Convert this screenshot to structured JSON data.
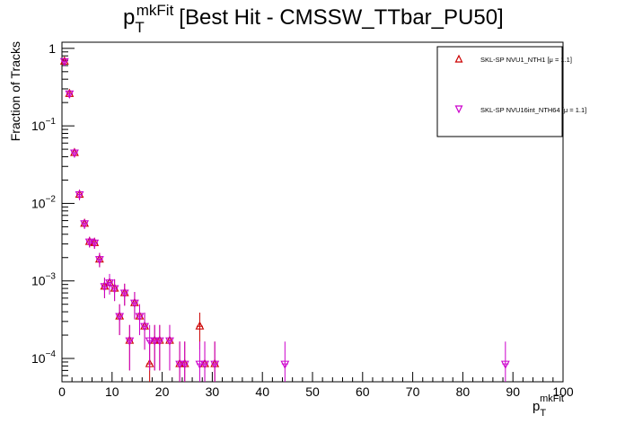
{
  "title": {
    "main": "p",
    "sub": "T",
    "sup": "mkFit",
    "rest": "[Best Hit - CMSSW_TTbar_PU50]"
  },
  "axes": {
    "ylabel": "Fraction of Tracks",
    "xlabel_main": "p",
    "xlabel_sub": "T",
    "xlabel_sup": "mkFit"
  },
  "legend": {
    "placement": "top-right",
    "entries": [
      {
        "label": "SKL-SP NVU1_NTH1 [μ =  1.1]",
        "marker": "triangle-up",
        "color": "#cc0000"
      },
      {
        "label": "SKL-SP NVU16int_NTH64 [μ =  1.1]",
        "marker": "triangle-down",
        "color": "#cc00cc"
      }
    ]
  },
  "chart_data": {
    "type": "scatter",
    "xlim": [
      0,
      100
    ],
    "ylim": [
      5e-05,
      1.2
    ],
    "yscale": "log",
    "xticks": [
      0,
      10,
      20,
      30,
      40,
      50,
      60,
      70,
      80,
      90,
      100
    ],
    "yticks": [
      {
        "value": 1,
        "base": "1",
        "exp": ""
      },
      {
        "value": 0.1,
        "base": "10",
        "exp": "−1"
      },
      {
        "value": 0.01,
        "base": "10",
        "exp": "−2"
      },
      {
        "value": 0.001,
        "base": "10",
        "exp": "−3"
      },
      {
        "value": 0.0001,
        "base": "10",
        "exp": "−4"
      }
    ],
    "grid": false,
    "series": [
      {
        "name": "SKL-SP NVU1_NTH1 [μ =  1.1]",
        "marker": "triangle-up",
        "color": "#cc0000",
        "points": [
          [
            0.5,
            0.68,
            0.05
          ],
          [
            1.5,
            0.26,
            0.03
          ],
          [
            2.5,
            0.045,
            0.006
          ],
          [
            3.5,
            0.013,
            0.002
          ],
          [
            4.5,
            0.0055,
            0.0008
          ],
          [
            5.5,
            0.0032,
            0.0005
          ],
          [
            6.5,
            0.0031,
            0.0005
          ],
          [
            7.5,
            0.0019,
            0.0004
          ],
          [
            8.5,
            0.00085,
            0.00025
          ],
          [
            9.5,
            0.00095,
            0.00028
          ],
          [
            10.5,
            0.0008,
            0.00025
          ],
          [
            11.5,
            0.00035,
            0.00015
          ],
          [
            12.5,
            0.0007,
            0.00022
          ],
          [
            13.5,
            0.00017,
            0.0001
          ],
          [
            14.5,
            0.00052,
            0.0002
          ],
          [
            15.5,
            0.00035,
            0.00015
          ],
          [
            16.5,
            0.00026,
            0.00013
          ],
          [
            17.5,
            8.5e-05,
            8e-05
          ],
          [
            18.5,
            0.00017,
            0.0001
          ],
          [
            19.5,
            0.00017,
            0.0001
          ],
          [
            21.5,
            0.00017,
            0.0001
          ],
          [
            23.5,
            8.5e-05,
            8e-05
          ],
          [
            24.5,
            8.5e-05,
            8e-05
          ],
          [
            27.5,
            0.00026,
            0.00013
          ],
          [
            28.5,
            8.5e-05,
            8e-05
          ],
          [
            30.5,
            8.5e-05,
            8e-05
          ]
        ]
      },
      {
        "name": "SKL-SP NVU16int_NTH64 [μ =  1.1]",
        "marker": "triangle-down",
        "color": "#cc00cc",
        "points": [
          [
            0.5,
            0.68,
            0.05
          ],
          [
            1.5,
            0.26,
            0.03
          ],
          [
            2.5,
            0.045,
            0.006
          ],
          [
            3.5,
            0.013,
            0.002
          ],
          [
            4.5,
            0.0055,
            0.0008
          ],
          [
            5.5,
            0.0032,
            0.0005
          ],
          [
            6.5,
            0.0031,
            0.0005
          ],
          [
            7.5,
            0.0019,
            0.0004
          ],
          [
            8.5,
            0.00085,
            0.00025
          ],
          [
            9.5,
            0.00095,
            0.00028
          ],
          [
            10.5,
            0.0008,
            0.00025
          ],
          [
            11.5,
            0.00035,
            0.00015
          ],
          [
            12.5,
            0.0007,
            0.00022
          ],
          [
            13.5,
            0.00017,
            0.0001
          ],
          [
            14.5,
            0.00052,
            0.0002
          ],
          [
            15.5,
            0.00035,
            0.00015
          ],
          [
            16.5,
            0.00026,
            0.00013
          ],
          [
            17.5,
            0.00017,
            0.0001
          ],
          [
            18.5,
            0.00017,
            0.0001
          ],
          [
            19.5,
            0.00017,
            0.0001
          ],
          [
            21.5,
            0.00017,
            0.0001
          ],
          [
            23.5,
            8.5e-05,
            8e-05
          ],
          [
            24.5,
            8.5e-05,
            8e-05
          ],
          [
            27.5,
            8.5e-05,
            8e-05
          ],
          [
            28.5,
            8.5e-05,
            8e-05
          ],
          [
            30.5,
            8.5e-05,
            8e-05
          ],
          [
            44.5,
            8.5e-05,
            8e-05
          ],
          [
            88.5,
            8.5e-05,
            8e-05
          ]
        ]
      }
    ]
  }
}
